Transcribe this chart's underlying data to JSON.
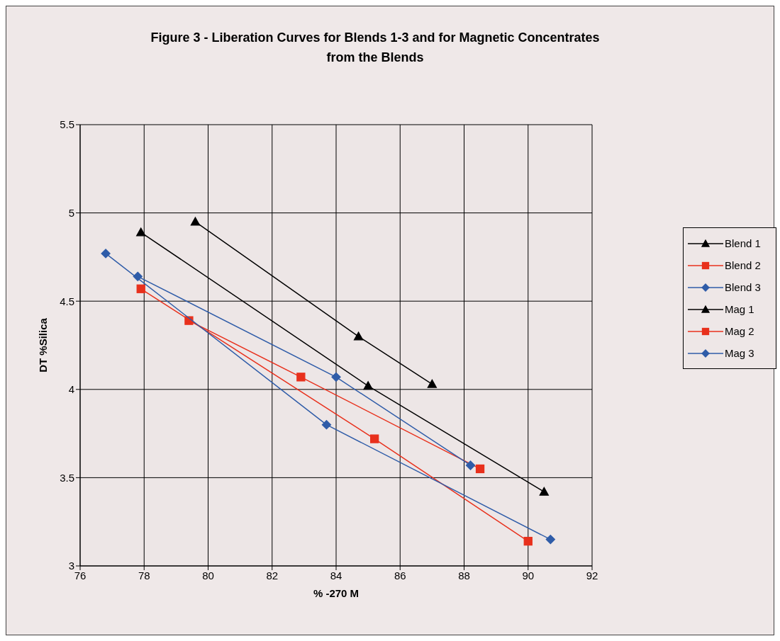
{
  "chart_data": {
    "type": "line",
    "title": "Figure 3 - Liberation Curves for Blends 1-3 and for Magnetic Concentrates from the Blends",
    "xlabel": "% -270 M",
    "ylabel": "DT %Silica",
    "series": [
      {
        "name": "Blend 1",
        "color": "#000000",
        "marker": "triangle",
        "x": [
          79.6,
          84.7,
          87.0
        ],
        "values": [
          4.95,
          4.3,
          4.03
        ]
      },
      {
        "name": "Blend 2",
        "color": "#e8301c",
        "marker": "square",
        "x": [
          79.4,
          82.9,
          88.5
        ],
        "values": [
          4.39,
          4.07,
          3.55
        ]
      },
      {
        "name": "Blend 3",
        "color": "#2f5ca8",
        "marker": "diamond",
        "x": [
          77.8,
          84.0,
          88.2
        ],
        "values": [
          4.64,
          4.07,
          3.57
        ]
      },
      {
        "name": "Mag 1",
        "color": "#000000",
        "marker": "triangle",
        "x": [
          77.9,
          85.0,
          90.5
        ],
        "values": [
          4.89,
          4.02,
          3.42
        ]
      },
      {
        "name": "Mag 2",
        "color": "#e8301c",
        "marker": "square",
        "x": [
          77.9,
          85.2,
          90.0
        ],
        "values": [
          4.57,
          3.72,
          3.14
        ]
      },
      {
        "name": "Mag 3",
        "color": "#2f5ca8",
        "marker": "diamond",
        "x": [
          76.8,
          83.7,
          90.7
        ],
        "values": [
          4.77,
          3.8,
          3.15
        ]
      }
    ],
    "xlim": [
      76,
      92
    ],
    "xticks": [
      76,
      78,
      80,
      82,
      84,
      86,
      88,
      90,
      92
    ],
    "ylim": [
      3,
      5.5
    ],
    "yticks": [
      3,
      3.5,
      4,
      4.5,
      5,
      5.5
    ],
    "grid": true,
    "legend": "right",
    "line_style": "solid"
  }
}
